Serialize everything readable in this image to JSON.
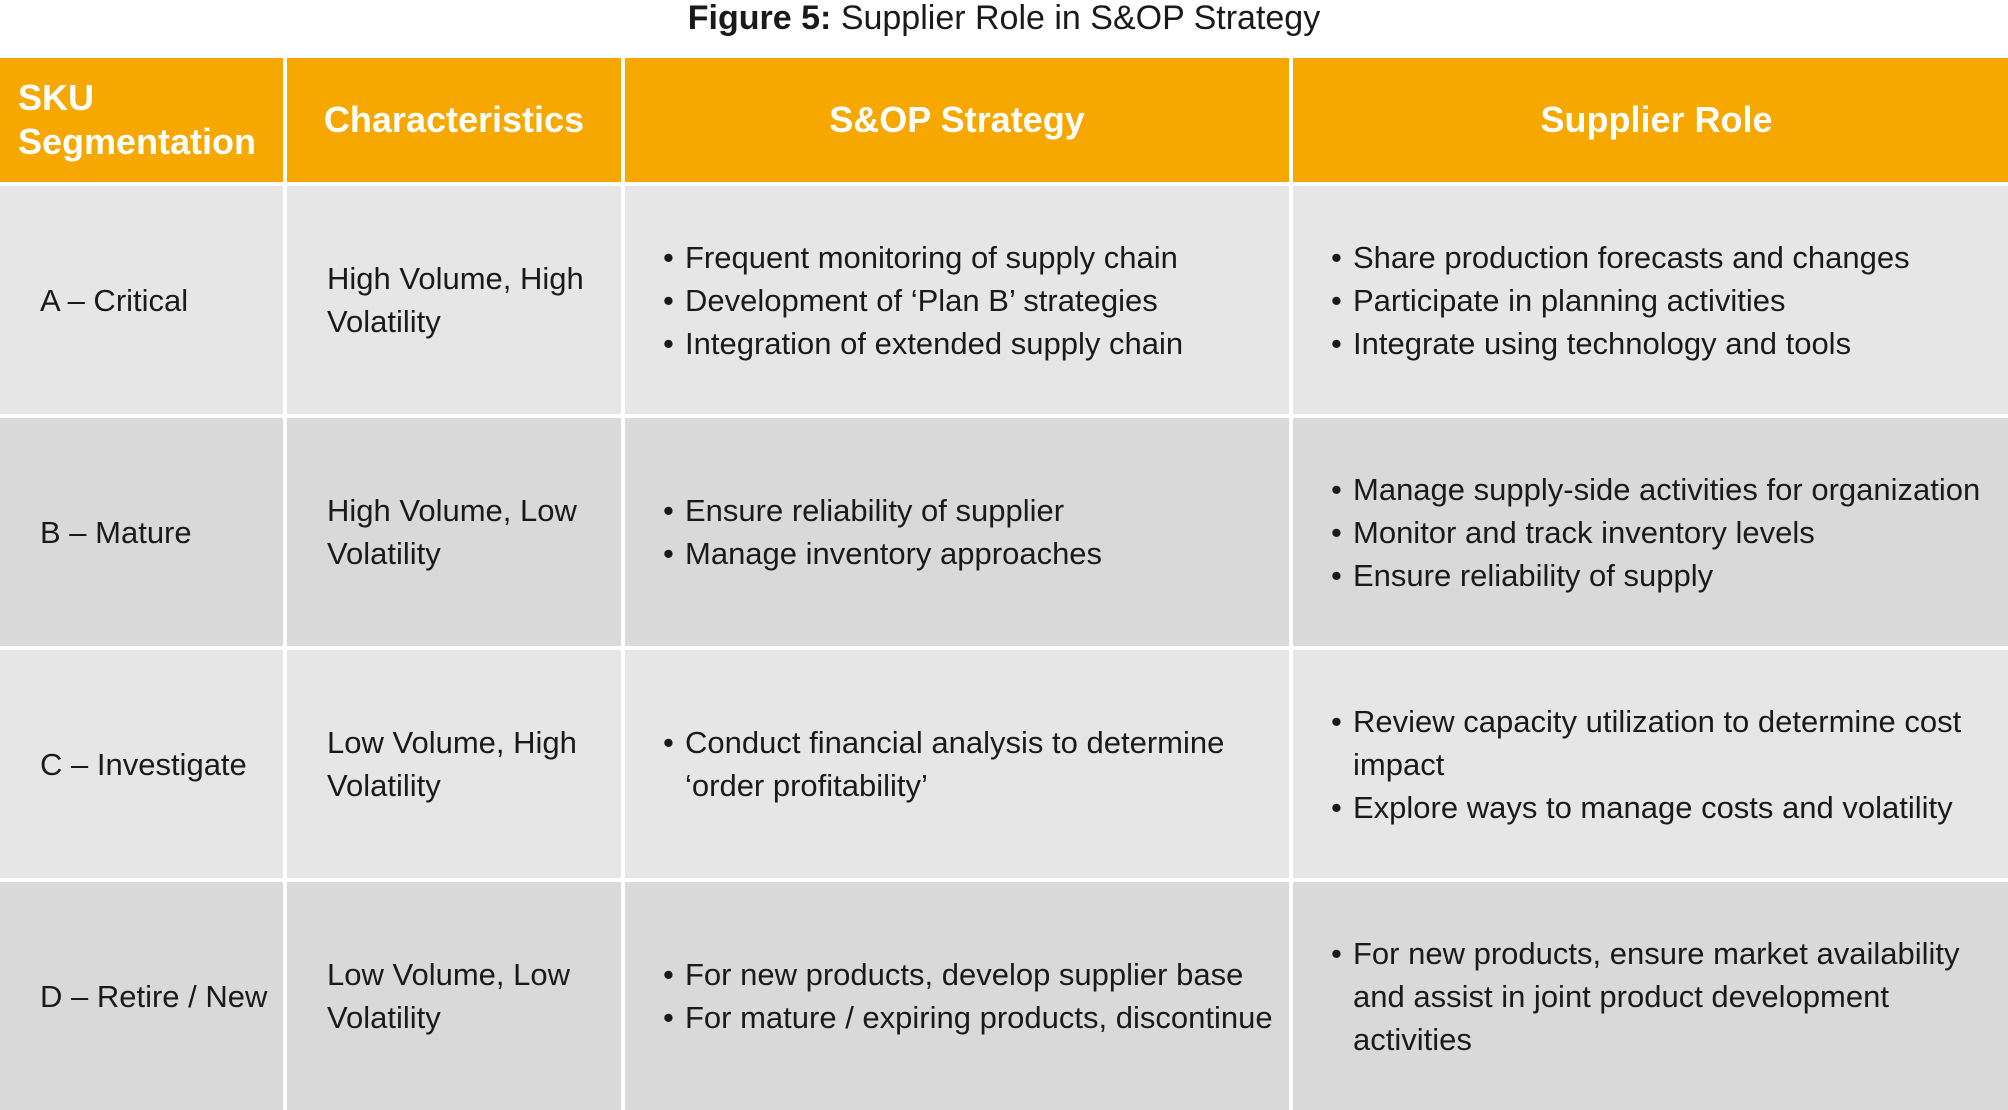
{
  "caption": {
    "label": "Figure 5:",
    "title": "Supplier Role in S&OP Strategy"
  },
  "table": {
    "headers": [
      "SKU Segmentation",
      "Characteristics",
      "S&OP Strategy",
      "Supplier Role"
    ],
    "rows": [
      {
        "segmentation": "A – Critical",
        "characteristics": "High Volume, High Volatility",
        "strategy": [
          "Frequent monitoring of supply chain",
          "Development of ‘Plan B’ strategies",
          "Integration of extended supply chain"
        ],
        "supplier_role": [
          "Share production forecasts and changes",
          "Participate in planning activities",
          "Integrate using technology and tools"
        ]
      },
      {
        "segmentation": "B – Mature",
        "characteristics": "High Volume, Low Volatility",
        "strategy": [
          "Ensure reliability of supplier",
          "Manage inventory approaches"
        ],
        "supplier_role": [
          "Manage supply-side activities for organization",
          "Monitor and track inventory levels",
          "Ensure reliability of supply"
        ]
      },
      {
        "segmentation": "C – Investigate",
        "characteristics": "Low Volume, High Volatility",
        "strategy": [
          "Conduct financial analysis to determine ‘order profitability’"
        ],
        "supplier_role": [
          "Review capacity utilization to determine cost impact",
          "Explore ways to manage costs and volatility"
        ]
      },
      {
        "segmentation": "D – Retire / New",
        "characteristics": "Low Volume, Low Volatility",
        "strategy": [
          "For new products, develop supplier base",
          "For mature / expiring products, discontinue"
        ],
        "supplier_role": [
          "For new products, ensure market availability and assist in joint product development activities"
        ]
      }
    ]
  },
  "colors": {
    "header_bg": "#f7a800",
    "row_light": "#e6e6e6",
    "row_dark": "#d9d9d9"
  }
}
